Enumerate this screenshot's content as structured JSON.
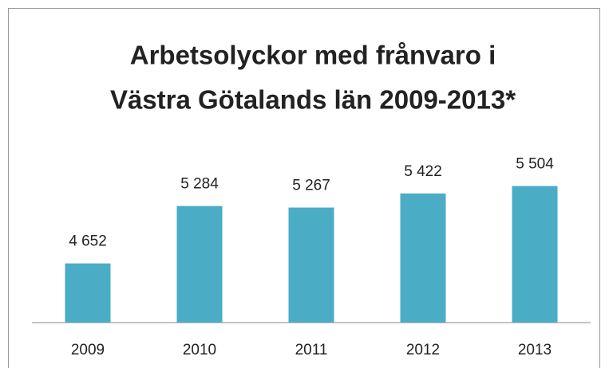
{
  "chart_data": {
    "type": "bar",
    "title": [
      "Arbetsolyckor med frånvaro i",
      "Västra Götalands län 2009-2013*"
    ],
    "categories": [
      "2009",
      "2010",
      "2011",
      "2012",
      "2013"
    ],
    "values": [
      4652,
      5284,
      5267,
      5422,
      5504
    ],
    "value_labels": [
      "4 652",
      "5 284",
      "5 267",
      "5 422",
      "5 504"
    ],
    "color": "#4bacc6",
    "ylim": [
      4000,
      6000
    ]
  }
}
